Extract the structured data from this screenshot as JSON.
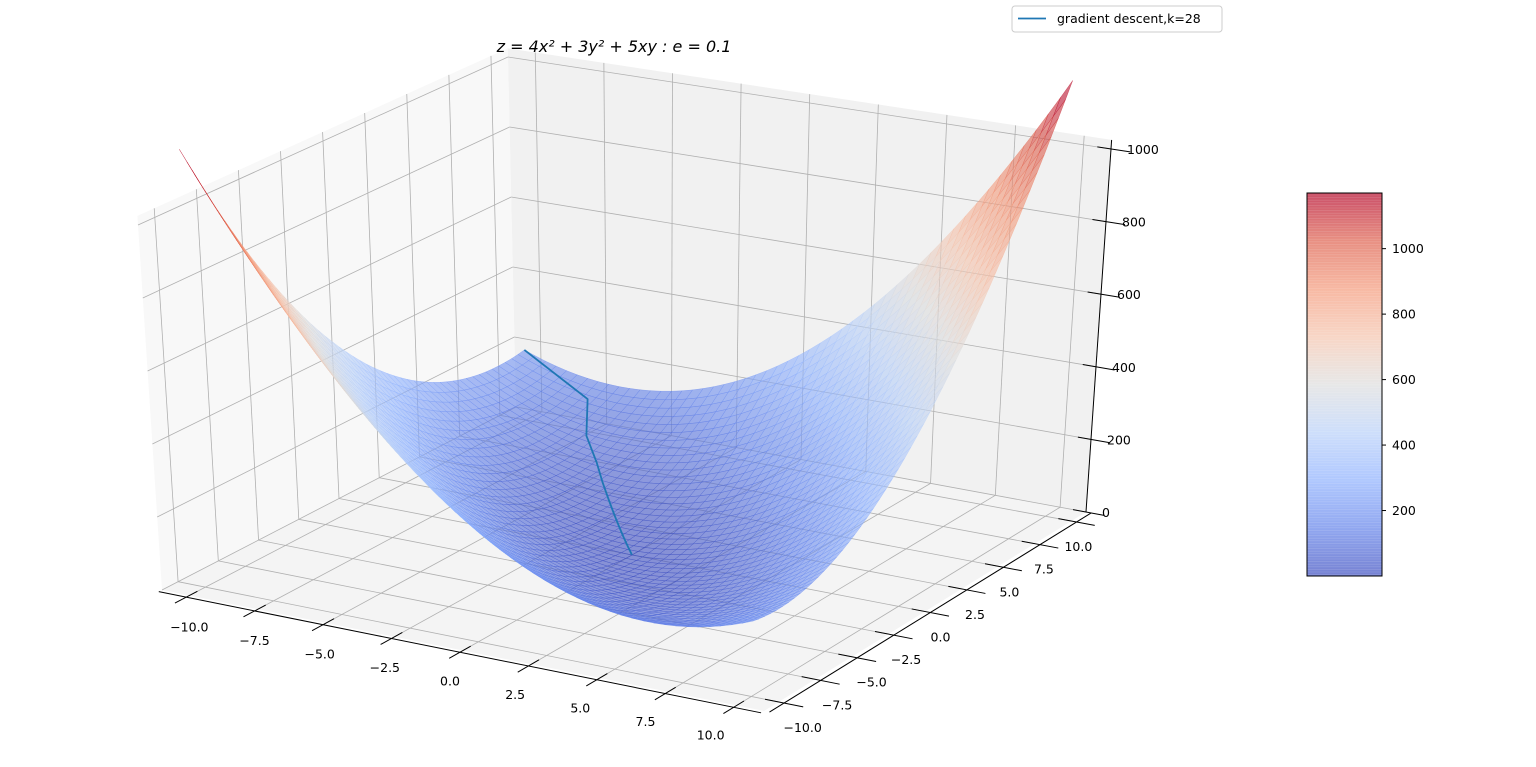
{
  "chart_data": {
    "type": "surface3d",
    "title": "z = 4x² + 3y² + 5xy : e = 0.1",
    "surface": {
      "coefficients": {
        "x2": 4,
        "y2": 3,
        "xy": 5
      },
      "x_range": [
        -10,
        10
      ],
      "y_range": [
        -10,
        10
      ]
    },
    "xlim": [
      -11,
      11
    ],
    "ylim": [
      -11,
      11
    ],
    "zlim": [
      0,
      1025
    ],
    "grid": true,
    "view": {
      "elev": 30,
      "azim": -60
    },
    "colormap": "coolwarm",
    "surface_alpha": 0.6,
    "x_ticks": [
      "−10.0",
      "−7.5",
      "−5.0",
      "−2.5",
      "0.0",
      "2.5",
      "5.0",
      "7.5",
      "10.0"
    ],
    "y_ticks": [
      "−10.0",
      "−7.5",
      "−5.0",
      "−2.5",
      "0.0",
      "2.5",
      "5.0",
      "7.5",
      "10.0"
    ],
    "z_ticks": [
      "0",
      "200",
      "400",
      "600",
      "800",
      "1000"
    ],
    "colorbar": {
      "range": [
        0,
        1170
      ],
      "ticks": [
        "200",
        "400",
        "600",
        "800",
        "1000"
      ]
    },
    "legend": {
      "label": "gradient descent,k=28",
      "position": "upper right",
      "color": "#1f77b4"
    },
    "path": [
      [
        -10,
        10,
        200
      ],
      [
        -7,
        9,
        124
      ],
      [
        -5.9,
        7.1,
        80.9
      ],
      [
        -4.73,
        5.79,
        53.2
      ],
      [
        -3.841,
        4.681,
        34.8
      ],
      [
        -3.109,
        3.793,
        22.9
      ],
      [
        -2.519,
        3.072,
        15.0
      ],
      [
        -2.04,
        2.489,
        9.8
      ],
      [
        -1.653,
        2.016,
        6.4
      ],
      [
        -1.339,
        1.633,
        4.24
      ],
      [
        -1.085,
        1.323,
        2.78
      ],
      [
        -0.879,
        1.072,
        1.83
      ],
      [
        -0.712,
        0.868,
        1.2
      ],
      [
        -0.577,
        0.703,
        0.79
      ],
      [
        -0.467,
        0.57,
        0.52
      ],
      [
        -0.378,
        0.461,
        0.34
      ],
      [
        -0.306,
        0.374,
        0.22
      ],
      [
        -0.248,
        0.303,
        0.15
      ],
      [
        -0.201,
        0.245,
        0.1
      ],
      [
        -0.163,
        0.198,
        0.06
      ],
      [
        -0.132,
        0.161,
        0.04
      ],
      [
        -0.107,
        0.13,
        0.03
      ],
      [
        -0.086,
        0.105,
        0.02
      ],
      [
        -0.07,
        0.085,
        0.01
      ],
      [
        -0.057,
        0.069,
        0.01
      ],
      [
        -0.046,
        0.056,
        0.01
      ],
      [
        -0.037,
        0.045,
        0.0
      ],
      [
        -0.03,
        0.036,
        0.0
      ],
      [
        -0.024,
        0.029,
        0.0
      ]
    ]
  }
}
